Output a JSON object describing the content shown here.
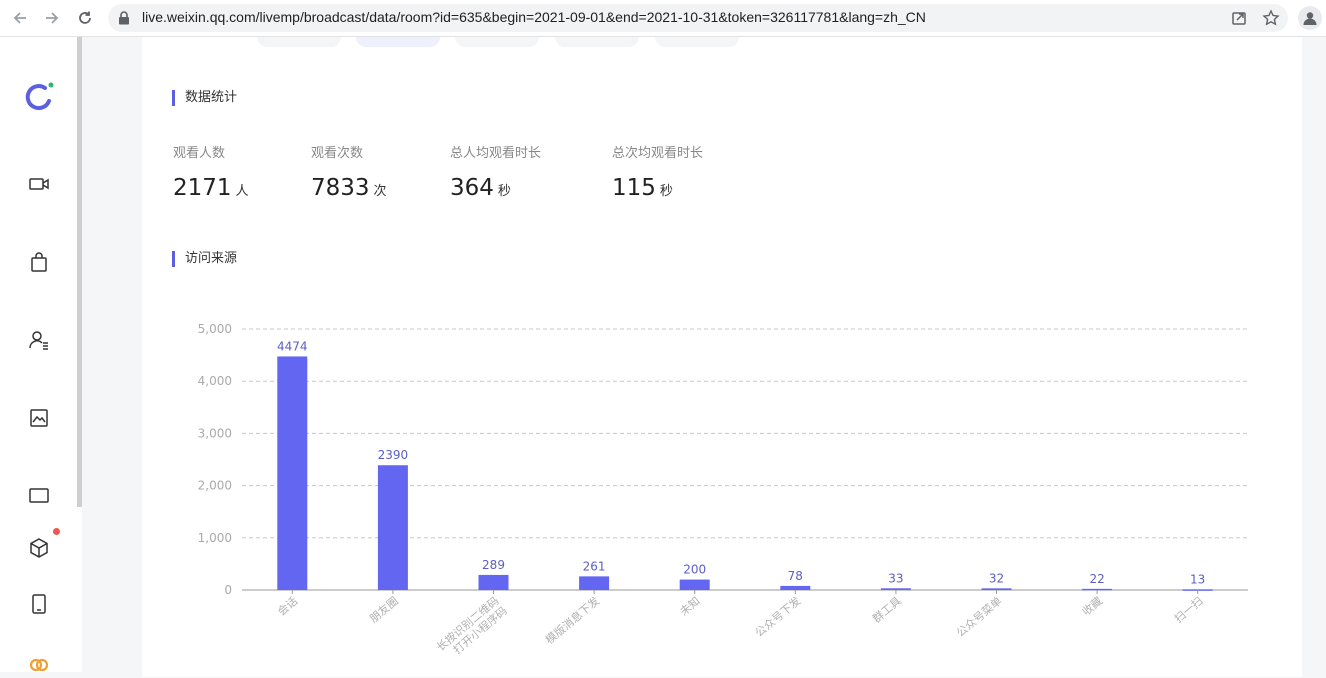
{
  "browser": {
    "url": "live.weixin.qq.com/livemp/broadcast/data/room?id=635&begin=2021-09-01&end=2021-10-31&token=326117781&lang=zh_CN",
    "icons": [
      "back-icon",
      "forward-icon",
      "reload-icon",
      "lock-icon",
      "share-icon",
      "bookmark-star-icon",
      "profile-icon"
    ]
  },
  "sidebar": {
    "items": [
      {
        "name": "logo",
        "icon": "brand-logo-icon"
      },
      {
        "name": "live",
        "icon": "video-camera-icon"
      },
      {
        "name": "shop",
        "icon": "shopping-bag-icon"
      },
      {
        "name": "users",
        "icon": "user-list-icon"
      },
      {
        "name": "data",
        "icon": "chart-image-icon"
      },
      {
        "name": "messages",
        "icon": "message-icon"
      },
      {
        "name": "goods",
        "icon": "cube-icon",
        "badge": true
      },
      {
        "name": "mobile",
        "icon": "mobile-icon"
      },
      {
        "name": "more",
        "icon": "orange-loop-icon"
      }
    ]
  },
  "stats_section": {
    "title": "数据统计",
    "stats": [
      {
        "label": "观看人数",
        "value": "2171",
        "unit": "人"
      },
      {
        "label": "观看次数",
        "value": "7833",
        "unit": "次"
      },
      {
        "label": "总人均观看时长",
        "value": "364",
        "unit": "秒"
      },
      {
        "label": "总次均观看时长",
        "value": "115",
        "unit": "秒"
      }
    ]
  },
  "source_section": {
    "title": "访问来源"
  },
  "chart_data": {
    "type": "bar",
    "title": "",
    "xlabel": "",
    "ylabel": "",
    "categories": [
      "会话",
      "朋友圈",
      "长按识别二维码打开小程序码",
      "模版消息下发",
      "未知",
      "公众号下发",
      "群工具",
      "公众号菜单",
      "收藏",
      "扫一扫"
    ],
    "values": [
      4474,
      2390,
      289,
      261,
      200,
      78,
      33,
      32,
      22,
      13
    ],
    "y_ticks": [
      "0",
      "1,000",
      "2,000",
      "3,000",
      "4,000",
      "5,000"
    ],
    "ylim": [
      0,
      5000
    ],
    "grid": true,
    "bar_color": "#6366f1",
    "label_color": "#5b5fc7"
  }
}
